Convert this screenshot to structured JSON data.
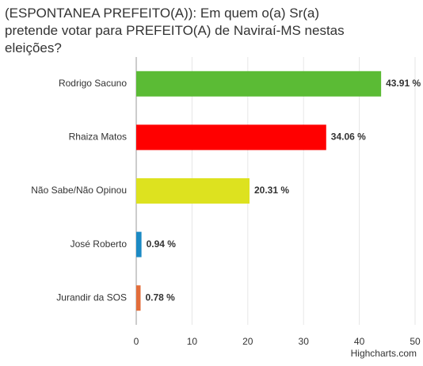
{
  "chart_data": {
    "type": "bar",
    "orientation": "horizontal",
    "title": "(ESPONTANEA PREFEITO(A)): Em quem o(a) Sr(a) pretende votar para PREFEITO(A) de Naviraí-MS nestas eleições?",
    "categories": [
      "Rodrigo Sacuno",
      "Rhaiza Matos",
      "Não Sabe/Não Opinou",
      "José Roberto",
      "Jurandir da SOS"
    ],
    "values": [
      43.91,
      34.06,
      20.31,
      0.94,
      0.78
    ],
    "value_labels": [
      "43.91 %",
      "34.06 %",
      "20.31 %",
      "0.94 %",
      "0.78 %"
    ],
    "colors": [
      "#5bbb35",
      "#ff0000",
      "#dde21f",
      "#1b8ac4",
      "#e36d3a"
    ],
    "xlim": [
      0,
      50
    ],
    "xticks": [
      0,
      10,
      20,
      30,
      40,
      50
    ],
    "grid": true,
    "credits": "Highcharts.com"
  }
}
